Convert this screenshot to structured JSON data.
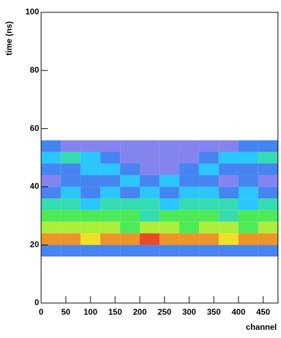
{
  "chart_data": {
    "type": "heatmap",
    "x_label": "channel",
    "y_label": "time (ns)",
    "xlim": [
      0,
      480
    ],
    "ylim": [
      0,
      100
    ],
    "xticks": [
      0,
      50,
      100,
      150,
      200,
      250,
      300,
      350,
      400,
      450
    ],
    "yticks": [
      0,
      20,
      40,
      60,
      80,
      100
    ],
    "x_bins": [
      0,
      40,
      80,
      120,
      160,
      200,
      240,
      280,
      320,
      360,
      400,
      440,
      480
    ],
    "y_bins": [
      16,
      20,
      24,
      28,
      32,
      36,
      40,
      44,
      48,
      52,
      56
    ],
    "z": [
      [
        2,
        2,
        2,
        2,
        2,
        2,
        2,
        2,
        2,
        2,
        2,
        2
      ],
      [
        8,
        8,
        7,
        8,
        8,
        9,
        8,
        8,
        8,
        7,
        8,
        8
      ],
      [
        6,
        6,
        6,
        6,
        5,
        6,
        6,
        5,
        6,
        6,
        5,
        6
      ],
      [
        5,
        5,
        5,
        5,
        5,
        4,
        5,
        5,
        5,
        4,
        5,
        5
      ],
      [
        4,
        4,
        3,
        4,
        4,
        4,
        3,
        4,
        4,
        4,
        3,
        4
      ],
      [
        2,
        3,
        2,
        3,
        2,
        3,
        2,
        3,
        3,
        2,
        3,
        2
      ],
      [
        1,
        2,
        2,
        2,
        3,
        2,
        3,
        2,
        2,
        1,
        2,
        1
      ],
      [
        2,
        2,
        3,
        3,
        2,
        1,
        1,
        2,
        3,
        2,
        2,
        2
      ],
      [
        3,
        4,
        3,
        2,
        1,
        1,
        1,
        1,
        2,
        3,
        3,
        4
      ],
      [
        2,
        1,
        1,
        1,
        1,
        1,
        1,
        1,
        1,
        1,
        2,
        2
      ]
    ],
    "zlim": [
      0,
      9
    ]
  }
}
